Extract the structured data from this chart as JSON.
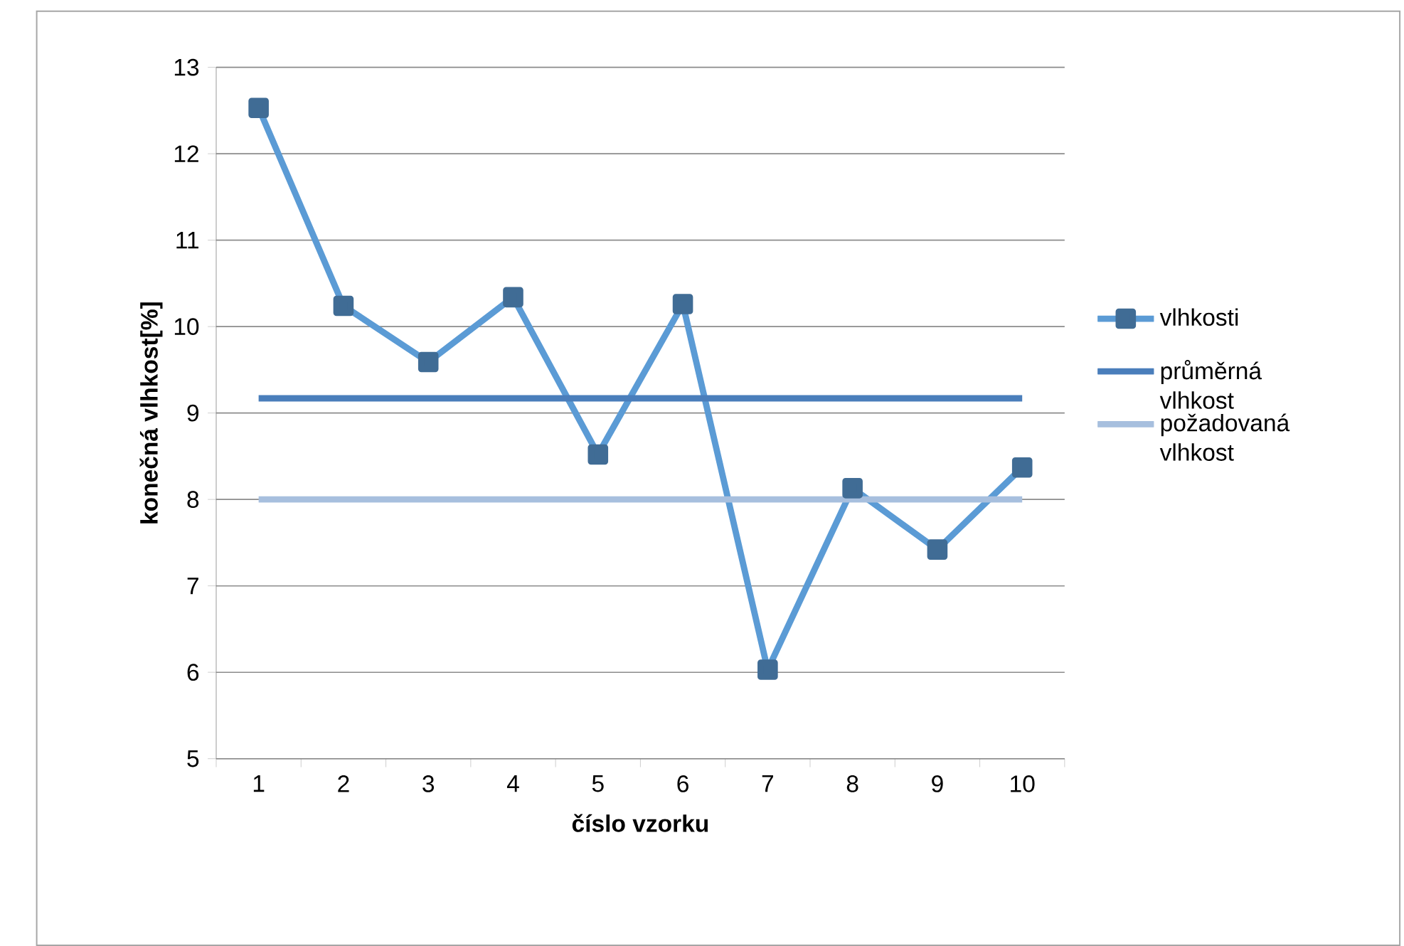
{
  "chart_data": {
    "type": "line",
    "xlabel": "číslo vzorku",
    "ylabel": "konečná vlhkost[%]",
    "categories": [
      "1",
      "2",
      "3",
      "4",
      "5",
      "6",
      "7",
      "8",
      "9",
      "10"
    ],
    "series": [
      {
        "name": "vlhkosti",
        "color": "#5b9bd5",
        "marker": "square",
        "values": [
          12.53,
          10.24,
          9.59,
          10.34,
          8.52,
          10.26,
          6.03,
          8.13,
          7.42,
          8.37
        ]
      },
      {
        "name": "průměrná vlhkost",
        "color": "#4a7ebb",
        "marker": "none",
        "values": [
          9.17,
          9.17,
          9.17,
          9.17,
          9.17,
          9.17,
          9.17,
          9.17,
          9.17,
          9.17
        ]
      },
      {
        "name": "požadovaná vlhkost",
        "color": "#a7bfde",
        "marker": "none",
        "values": [
          8,
          8,
          8,
          8,
          8,
          8,
          8,
          8,
          8,
          8
        ]
      }
    ],
    "ylim": [
      5,
      13
    ],
    "yticks": [
      5,
      6,
      7,
      8,
      9,
      10,
      11,
      12,
      13
    ],
    "grid": "y",
    "legend": "right"
  }
}
